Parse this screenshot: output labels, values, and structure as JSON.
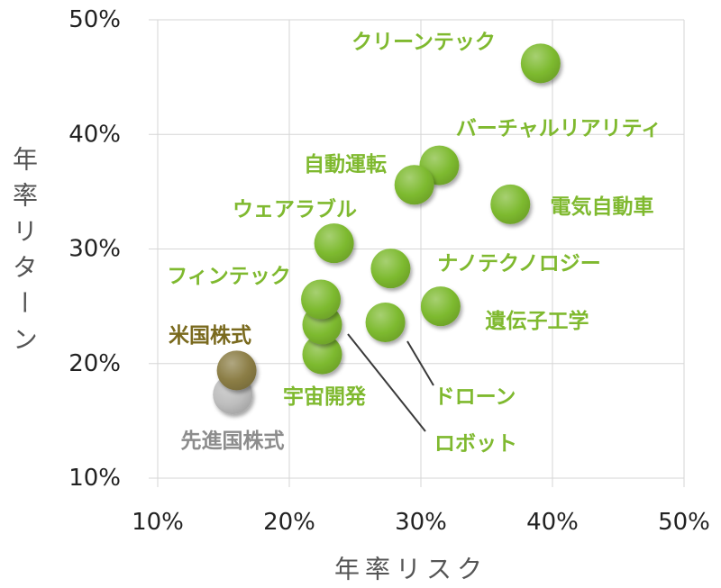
{
  "chart_data": {
    "type": "scatter",
    "title": "",
    "xlabel": "年率リスク",
    "ylabel": "年率リターン",
    "xlim": [
      10,
      50
    ],
    "ylim": [
      10,
      50
    ],
    "x_ticks": [
      10,
      20,
      30,
      40,
      50
    ],
    "x_tick_labels": [
      "10%",
      "20%",
      "30%",
      "40%",
      "50%"
    ],
    "y_ticks": [
      10,
      20,
      30,
      40,
      50
    ],
    "y_tick_labels": [
      "10%",
      "20%",
      "30%",
      "40%",
      "50%"
    ],
    "grid": true,
    "legend": "none",
    "points": [
      {
        "label": "クリーンテック",
        "x": 39.1,
        "y": 46.2,
        "color": "#7dba2f",
        "label_color": "#7fb92f"
      },
      {
        "label": "バーチャルリアリティ",
        "x": 31.4,
        "y": 37.3,
        "color": "#7dba2f",
        "label_color": "#7fb92f"
      },
      {
        "label": "自動運転",
        "x": 29.5,
        "y": 35.6,
        "color": "#7dba2f",
        "label_color": "#7fb92f"
      },
      {
        "label": "電気自動車",
        "x": 36.8,
        "y": 33.9,
        "color": "#7dba2f",
        "label_color": "#7fb92f"
      },
      {
        "label": "ウェアラブル",
        "x": 23.4,
        "y": 30.5,
        "color": "#7dba2f",
        "label_color": "#7fb92f"
      },
      {
        "label": "ナノテクノロジー",
        "x": 27.7,
        "y": 28.3,
        "color": "#7dba2f",
        "label_color": "#7fb92f"
      },
      {
        "label": "宇宙開発",
        "x": 22.5,
        "y": 20.8,
        "color": "#7dba2f",
        "label_color": "#7fb92f"
      },
      {
        "label": "ロボット",
        "x": 22.5,
        "y": 23.4,
        "color": "#7dba2f",
        "label_color": "#7fb92f"
      },
      {
        "label": "フィンテック",
        "x": 22.4,
        "y": 25.6,
        "color": "#7dba2f",
        "label_color": "#7fb92f"
      },
      {
        "label": "遺伝子工学",
        "x": 31.5,
        "y": 25.0,
        "color": "#7dba2f",
        "label_color": "#7fb92f"
      },
      {
        "label": "ドローン",
        "x": 27.3,
        "y": 23.6,
        "color": "#7dba2f",
        "label_color": "#7fb92f"
      },
      {
        "label": "先進国株式",
        "x": 15.7,
        "y": 17.3,
        "color": "#bdbdbd",
        "label_color": "#8c8c8c"
      },
      {
        "label": "米国株式",
        "x": 16.0,
        "y": 19.4,
        "color": "#8b7d45",
        "label_color": "#7a6a1e"
      }
    ]
  }
}
